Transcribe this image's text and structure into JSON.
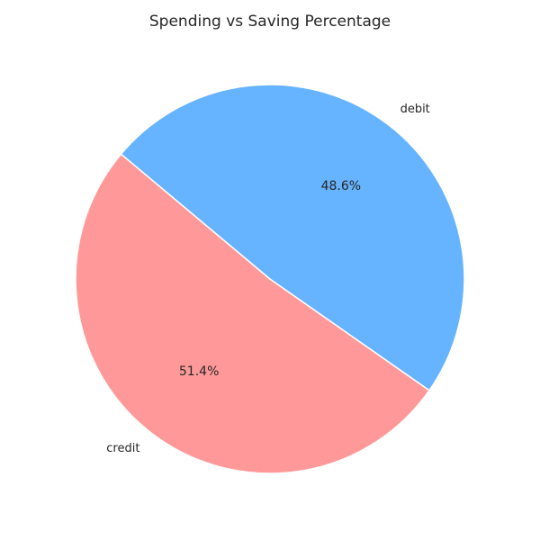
{
  "chart_data": {
    "type": "pie",
    "title": "Spending vs Saving Percentage",
    "categories": [
      "credit",
      "debit"
    ],
    "values": [
      51.4,
      48.6
    ],
    "percent_labels": [
      "51.4%",
      "48.6%"
    ],
    "colors": [
      "#ff9999",
      "#66b3ff"
    ],
    "legend": "none"
  }
}
